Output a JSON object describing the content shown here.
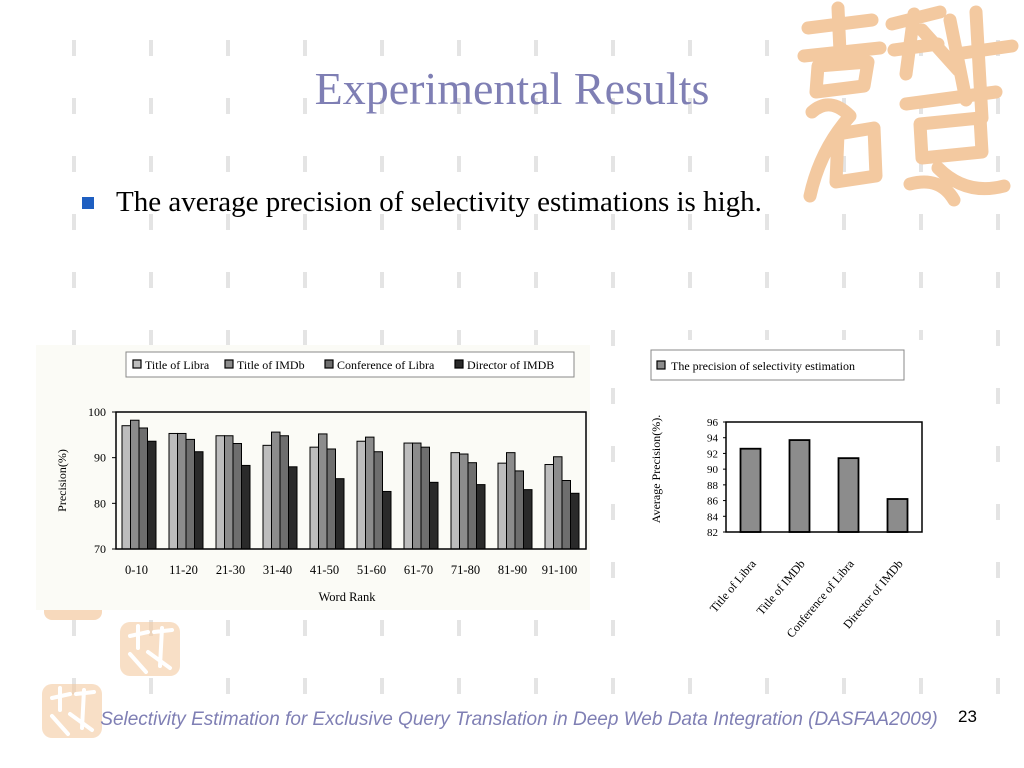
{
  "slide": {
    "title": "Experimental Results",
    "bullet": "The average precision of selectivity estimations is high.",
    "footer": "Selectivity Estimation for Exclusive Query Translation in Deep Web Data Integration (DASFAA2009)",
    "page_number": "23"
  },
  "colors": {
    "title": "#7f7fb4",
    "bullet": "#1f5fc1",
    "footer": "#7f7fb4",
    "decoration": "#f3c9a0"
  },
  "chart_data": [
    {
      "type": "bar",
      "xlabel": "Word Rank",
      "ylabel": "Precision(%)",
      "ylim": [
        70,
        100
      ],
      "yticks": [
        70,
        80,
        90,
        100
      ],
      "legend_position": "top",
      "categories": [
        "0-10",
        "11-20",
        "21-30",
        "31-40",
        "41-50",
        "51-60",
        "61-70",
        "71-80",
        "81-90",
        "91-100"
      ],
      "series": [
        {
          "name": "Title of Libra",
          "color": "#bdbdbd",
          "values": [
            97,
            95.3,
            94.8,
            92.7,
            92.3,
            93.6,
            93.2,
            91.1,
            88.8,
            88.5
          ]
        },
        {
          "name": "Title of IMDb",
          "color": "#8c8c8c",
          "values": [
            98.2,
            95.3,
            94.8,
            95.6,
            95.2,
            94.5,
            93.2,
            90.8,
            91.1,
            90.2
          ]
        },
        {
          "name": "Conference of Libra",
          "color": "#6e6e6e",
          "values": [
            96.5,
            94,
            93.1,
            94.8,
            91.9,
            91.3,
            92.3,
            88.9,
            87.1,
            85
          ]
        },
        {
          "name": "Director of IMDB",
          "color": "#2a2a2a",
          "values": [
            93.6,
            91.3,
            88.3,
            88,
            85.4,
            82.6,
            84.6,
            84.1,
            83,
            82.2
          ]
        }
      ]
    },
    {
      "type": "bar",
      "ylabel": "Average Precision(%).",
      "ylim": [
        82,
        96
      ],
      "yticks": [
        82,
        84,
        86,
        88,
        90,
        92,
        94,
        96
      ],
      "legend_position": "top",
      "categories": [
        "Title of Libra",
        "Title of IMDb",
        "Conference of Libra",
        "Director of IMDb"
      ],
      "series": [
        {
          "name": "The precision of selectivity estimation",
          "color": "#8c8c8c",
          "values": [
            92.6,
            93.7,
            91.4,
            86.2
          ]
        }
      ]
    }
  ]
}
